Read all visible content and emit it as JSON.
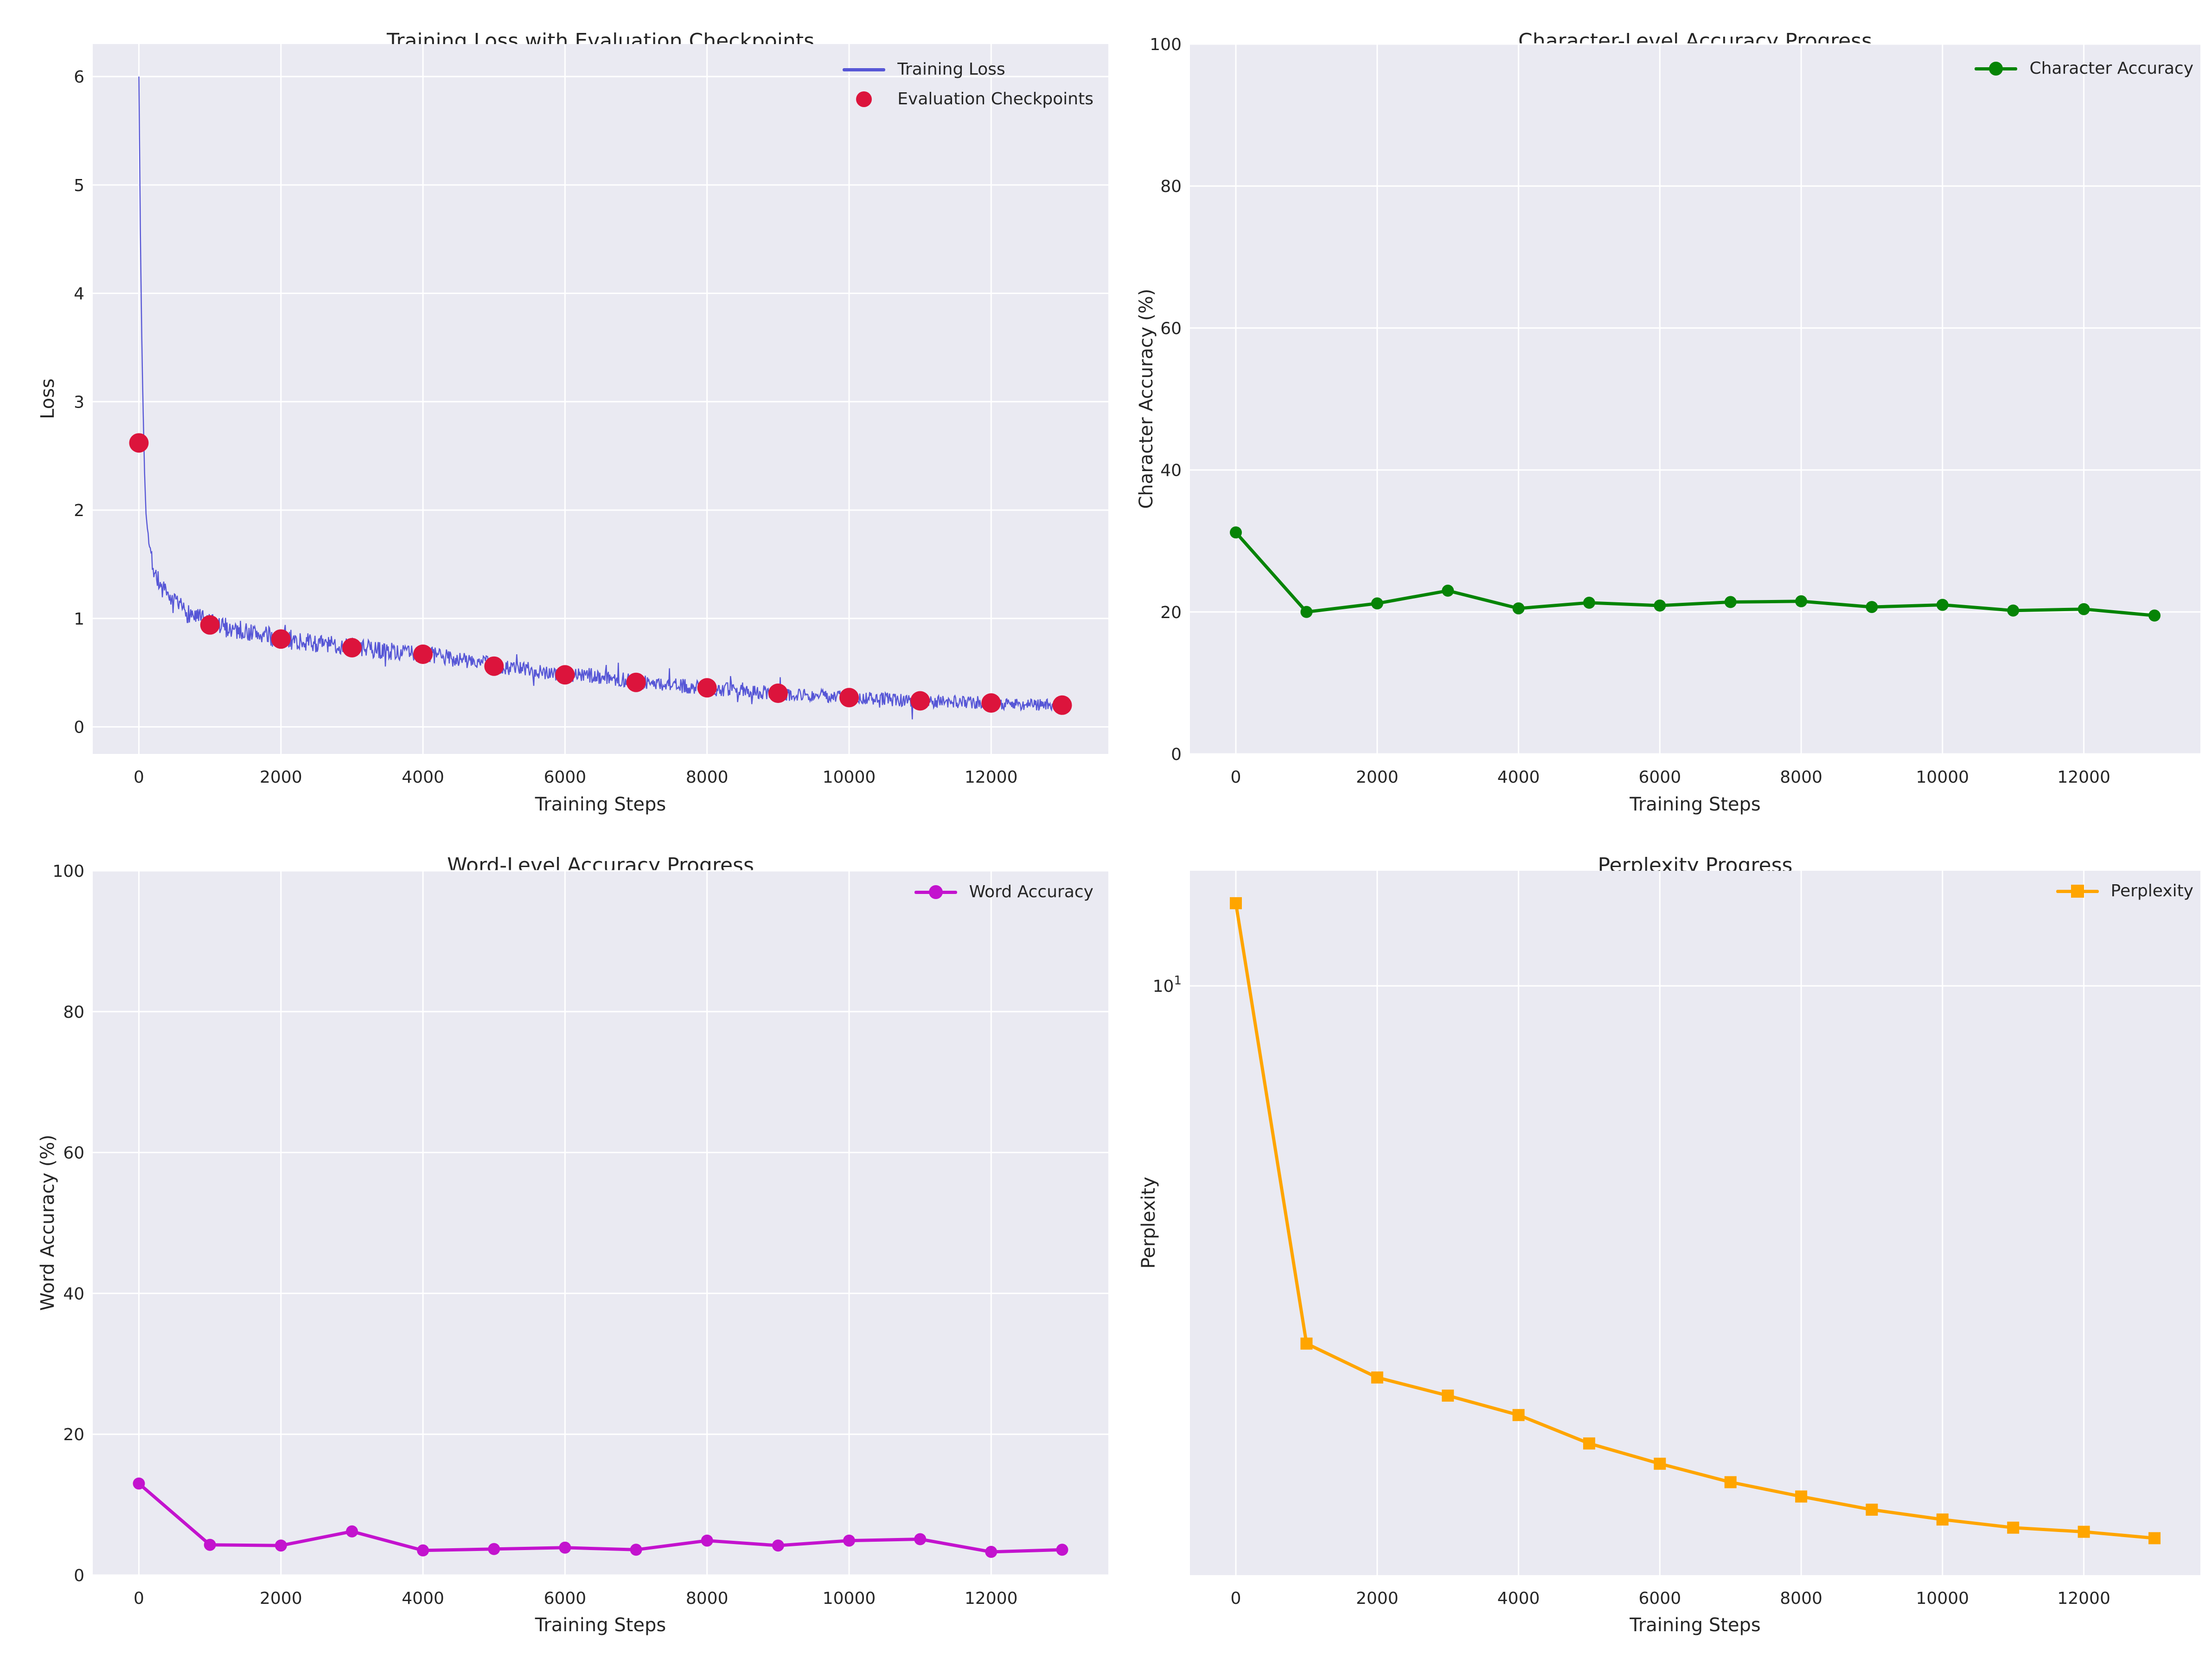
{
  "figure": {
    "background": "#ffffff",
    "axes_background": "#eaeaf2",
    "grid_color": "#ffffff",
    "text_color": "#262626"
  },
  "chart_data": [
    {
      "id": "training-loss",
      "type": "line",
      "title": "Training Loss with Evaluation Checkpoints",
      "xlabel": "Training Steps",
      "ylabel": "Loss",
      "xlim": [
        -650,
        13650
      ],
      "ylim": [
        -0.25,
        6.3
      ],
      "xticks": [
        0,
        2000,
        4000,
        6000,
        8000,
        10000,
        12000
      ],
      "yticks": [
        0,
        1,
        2,
        3,
        4,
        5,
        6
      ],
      "grid": true,
      "legend_position": "upper right",
      "series": [
        {
          "name": "Training Loss",
          "type": "noisy-line",
          "color": "#5656d6",
          "linewidth": 2.4,
          "trend_x": [
            0,
            20,
            40,
            60,
            80,
            100,
            150,
            200,
            300,
            400,
            500,
            700,
            1000,
            1500,
            2000,
            2500,
            3000,
            3500,
            4000,
            4500,
            5000,
            5500,
            6000,
            6500,
            7000,
            7500,
            8000,
            8500,
            9000,
            9500,
            10000,
            10500,
            11000,
            11500,
            12000,
            12500,
            13000
          ],
          "trend_y": [
            6.0,
            4.6,
            3.6,
            2.9,
            2.35,
            1.98,
            1.65,
            1.48,
            1.3,
            1.2,
            1.13,
            1.05,
            0.95,
            0.88,
            0.81,
            0.77,
            0.735,
            0.7,
            0.67,
            0.625,
            0.57,
            0.525,
            0.49,
            0.465,
            0.415,
            0.385,
            0.355,
            0.33,
            0.31,
            0.29,
            0.27,
            0.255,
            0.24,
            0.23,
            0.22,
            0.21,
            0.2
          ],
          "noise_seed": 7,
          "noise_amp_base": 0.05,
          "noise_amp_extra": 0.05,
          "noise_amp_tau": 7000,
          "step": 10
        },
        {
          "name": "Evaluation Checkpoints",
          "type": "scatter",
          "color": "#dc143c",
          "marker_radius": 21,
          "x": [
            0,
            1000,
            2000,
            3000,
            4000,
            5000,
            6000,
            7000,
            8000,
            9000,
            10000,
            11000,
            12000,
            13000
          ],
          "y": [
            2.62,
            0.94,
            0.81,
            0.73,
            0.67,
            0.56,
            0.48,
            0.41,
            0.36,
            0.31,
            0.27,
            0.24,
            0.22,
            0.2
          ]
        }
      ]
    },
    {
      "id": "character-accuracy",
      "type": "line",
      "title": "Character-Level Accuracy Progress",
      "xlabel": "Training Steps",
      "ylabel": "Character Accuracy (%)",
      "xlim": [
        -650,
        13650
      ],
      "ylim": [
        0,
        100
      ],
      "xticks": [
        0,
        2000,
        4000,
        6000,
        8000,
        10000,
        12000
      ],
      "yticks": [
        0,
        20,
        40,
        60,
        80,
        100
      ],
      "grid": true,
      "legend_position": "upper right",
      "series": [
        {
          "name": "Character Accuracy",
          "type": "line",
          "color": "#068406",
          "linewidth": 7,
          "marker": "circle",
          "marker_radius": 13,
          "x": [
            0,
            1000,
            2000,
            3000,
            4000,
            5000,
            6000,
            7000,
            8000,
            9000,
            10000,
            11000,
            12000,
            13000
          ],
          "y": [
            31.2,
            20.0,
            21.2,
            23.0,
            20.5,
            21.3,
            20.9,
            21.4,
            21.5,
            20.7,
            21.0,
            20.2,
            20.4,
            19.5
          ]
        }
      ]
    },
    {
      "id": "word-accuracy",
      "type": "line",
      "title": "Word-Level Accuracy Progress",
      "xlabel": "Training Steps",
      "ylabel": "Word Accuracy (%)",
      "xlim": [
        -650,
        13650
      ],
      "ylim": [
        0,
        100
      ],
      "xticks": [
        0,
        2000,
        4000,
        6000,
        8000,
        10000,
        12000
      ],
      "yticks": [
        0,
        20,
        40,
        60,
        80,
        100
      ],
      "grid": true,
      "legend_position": "upper right",
      "series": [
        {
          "name": "Word Accuracy",
          "type": "line",
          "color": "#c313ce",
          "linewidth": 7,
          "marker": "circle",
          "marker_radius": 13,
          "x": [
            0,
            1000,
            2000,
            3000,
            4000,
            5000,
            6000,
            7000,
            8000,
            9000,
            10000,
            11000,
            12000,
            13000
          ],
          "y": [
            13.0,
            4.3,
            4.2,
            6.2,
            3.5,
            3.7,
            3.9,
            3.6,
            4.9,
            4.2,
            4.9,
            5.1,
            3.3,
            3.6
          ]
        }
      ]
    },
    {
      "id": "perplexity",
      "type": "line",
      "title": "Perplexity Progress",
      "xlabel": "Training Steps",
      "ylabel": "Perplexity",
      "xlim": [
        -650,
        13650
      ],
      "yscale": "log",
      "ylim": [
        1.06,
        15.5
      ],
      "xticks": [
        0,
        2000,
        4000,
        6000,
        8000,
        10000,
        12000
      ],
      "yticks_log": [
        {
          "v": 10,
          "label": "10",
          "sup": "1"
        }
      ],
      "grid": true,
      "legend_position": "upper right",
      "series": [
        {
          "name": "Perplexity",
          "type": "line",
          "color": "#ffa500",
          "linewidth": 7,
          "marker": "square",
          "marker_size": 26,
          "x": [
            0,
            1000,
            2000,
            3000,
            4000,
            5000,
            6000,
            7000,
            8000,
            9000,
            10000,
            11000,
            12000,
            13000
          ],
          "y": [
            13.7,
            2.56,
            2.25,
            2.1,
            1.95,
            1.75,
            1.62,
            1.51,
            1.43,
            1.36,
            1.31,
            1.27,
            1.25,
            1.22
          ]
        }
      ]
    }
  ]
}
